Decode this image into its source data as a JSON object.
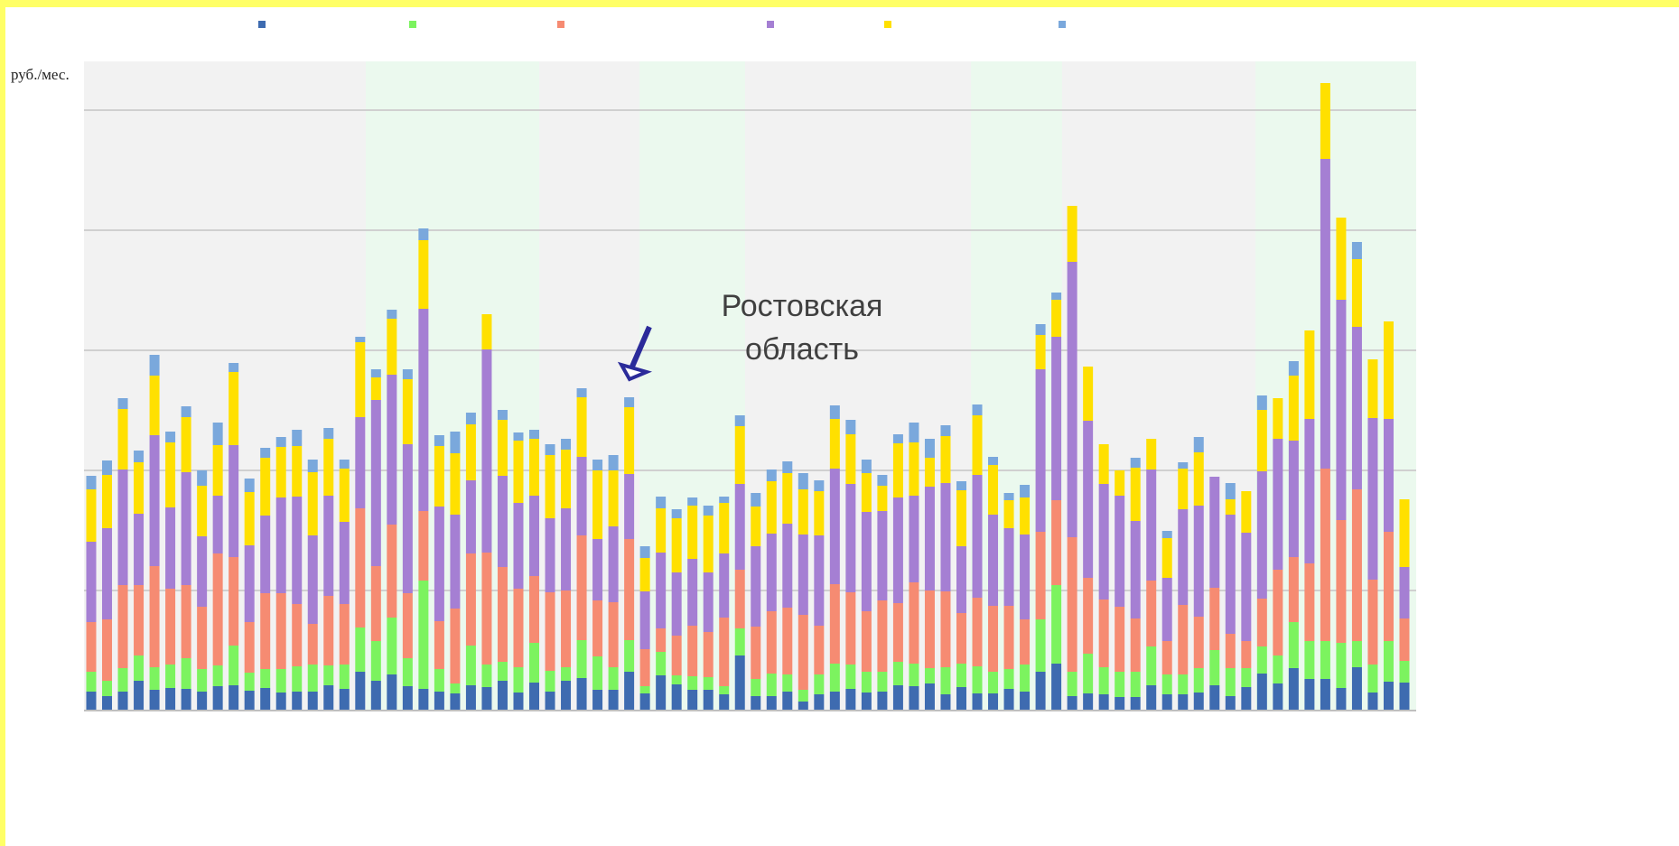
{
  "chart_data": {
    "type": "stacked_bar",
    "ylabel": "руб./мес.",
    "annotation": [
      "Ростовская",
      "область"
    ],
    "ylim": [
      0,
      719
    ],
    "yticks": [
      0,
      133,
      266,
      399,
      532,
      665
    ],
    "grid": true,
    "series": [
      {
        "color": "#3e6bb0",
        "values": [
          21,
          16,
          21,
          33,
          23,
          25,
          24,
          21,
          27,
          28,
          22,
          25,
          20,
          21,
          21,
          28,
          24,
          43,
          33,
          40,
          27,
          24,
          21,
          19,
          28,
          26,
          33,
          20,
          31,
          21,
          33,
          36,
          23,
          23,
          43,
          19,
          39,
          29,
          23,
          23,
          18,
          61,
          16,
          16,
          21,
          10,
          18,
          21,
          24,
          20,
          21,
          28,
          27,
          30,
          18,
          26,
          19,
          19,
          24,
          21,
          43,
          52,
          16,
          19,
          18,
          15,
          15,
          28,
          18,
          18,
          20,
          28,
          16,
          26,
          41,
          30,
          47,
          35,
          35,
          25,
          48,
          20,
          32,
          31
        ]
      },
      {
        "color": "#7cf35f",
        "values": [
          22,
          17,
          26,
          28,
          25,
          26,
          34,
          25,
          23,
          44,
          20,
          21,
          26,
          28,
          30,
          22,
          27,
          49,
          44,
          63,
          31,
          120,
          25,
          11,
          44,
          25,
          21,
          28,
          44,
          23,
          15,
          42,
          37,
          25,
          35,
          8,
          26,
          10,
          15,
          14,
          9,
          30,
          19,
          25,
          19,
          13,
          22,
          31,
          27,
          23,
          22,
          26,
          25,
          17,
          30,
          26,
          30,
          24,
          22,
          30,
          58,
          87,
          27,
          44,
          30,
          28,
          28,
          43,
          22,
          22,
          27,
          39,
          31,
          21,
          30,
          31,
          51,
          42,
          42,
          50,
          29,
          31,
          45,
          24
        ]
      },
      {
        "color": "#f68b72",
        "values": [
          55,
          68,
          92,
          78,
          112,
          84,
          81,
          69,
          124,
          98,
          56,
          84,
          84,
          69,
          45,
          77,
          67,
          132,
          83,
          103,
          72,
          77,
          53,
          83,
          102,
          124,
          105,
          87,
          74,
          87,
          85,
          116,
          62,
          72,
          112,
          41,
          26,
          44,
          56,
          50,
          76,
          65,
          58,
          69,
          74,
          83,
          54,
          88,
          80,
          67,
          79,
          65,
          90,
          86,
          84,
          56,
          76,
          73,
          70,
          50,
          97,
          94,
          149,
          84,
          75,
          72,
          59,
          73,
          37,
          77,
          57,
          69,
          38,
          30,
          53,
          95,
          72,
          86,
          191,
          136,
          168,
          94,
          121,
          47
        ]
      },
      {
        "color": "#a57fd3",
        "values": [
          89,
          101,
          128,
          79,
          145,
          90,
          125,
          78,
          64,
          124,
          85,
          86,
          106,
          119,
          98,
          111,
          91,
          101,
          184,
          166,
          165,
          224,
          127,
          104,
          81,
          225,
          101,
          95,
          89,
          82,
          91,
          87,
          68,
          84,
          72,
          64,
          84,
          70,
          74,
          66,
          71,
          95,
          89,
          86,
          93,
          89,
          100,
          128,
          120,
          110,
          99,
          117,
          96,
          115,
          120,
          74,
          136,
          101,
          86,
          94,
          180,
          181,
          305,
          174,
          128,
          123,
          108,
          123,
          70,
          106,
          123,
          123,
          132,
          120,
          141,
          145,
          129,
          160,
          343,
          244,
          180,
          179,
          125,
          57
        ]
      },
      {
        "color": "#ffe000",
        "values": [
          58,
          59,
          67,
          57,
          66,
          72,
          61,
          56,
          56,
          81,
          59,
          64,
          56,
          56,
          70,
          63,
          59,
          83,
          25,
          62,
          72,
          76,
          67,
          68,
          62,
          39,
          62,
          69,
          63,
          70,
          65,
          66,
          76,
          62,
          74,
          37,
          49,
          60,
          59,
          63,
          56,
          64,
          44,
          58,
          56,
          50,
          49,
          55,
          55,
          43,
          28,
          60,
          59,
          32,
          52,
          62,
          66,
          55,
          31,
          41,
          38,
          41,
          62,
          60,
          44,
          28,
          59,
          34,
          44,
          45,
          59,
          0,
          17,
          46,
          68,
          45,
          72,
          98,
          84,
          91,
          75,
          65,
          108,
          75
        ]
      },
      {
        "color": "#7aa8dc",
        "values": [
          15,
          16,
          12,
          13,
          23,
          12,
          12,
          17,
          25,
          10,
          15,
          11,
          11,
          18,
          14,
          12,
          10,
          6,
          9,
          10,
          11,
          13,
          12,
          24,
          13,
          0,
          11,
          9,
          10,
          12,
          12,
          10,
          12,
          17,
          11,
          13,
          13,
          10,
          9,
          11,
          7,
          12,
          15,
          13,
          13,
          18,
          12,
          15,
          16,
          15,
          12,
          10,
          22,
          21,
          12,
          10,
          12,
          9,
          8,
          14,
          12,
          8,
          0,
          0,
          0,
          0,
          11,
          0,
          8,
          7,
          17,
          0,
          18,
          0,
          16,
          0,
          16,
          0,
          0,
          0,
          19,
          0,
          0,
          0
        ]
      }
    ]
  }
}
